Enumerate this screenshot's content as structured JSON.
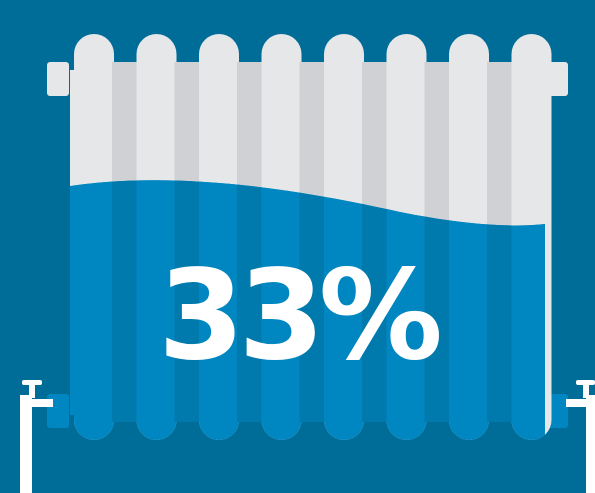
{
  "gauge": {
    "label": "33%",
    "fill_fraction": 0.33
  },
  "colors": {
    "background": "#006c98",
    "radiator_light": "#e6e7e9",
    "radiator_shade": "#cfd1d4",
    "water": "#0086c0",
    "water_shade": "#0079ad",
    "text": "#ffffff"
  },
  "icons": {
    "illustration": "radiator-icon",
    "valves": "pipe-valve-icon"
  }
}
